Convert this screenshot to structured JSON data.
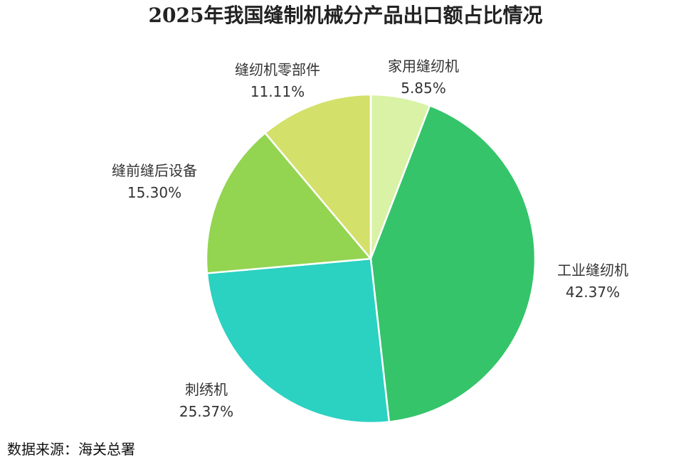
{
  "chart_data": {
    "type": "pie",
    "title": "2025年我国缝制机械分产品出口额占比情况",
    "categories": [
      "家用缝纫机",
      "工业缝纫机",
      "刺绣机",
      "缝前缝后设备",
      "缝纫机零部件"
    ],
    "values": [
      5.85,
      42.37,
      25.37,
      15.3,
      11.11
    ],
    "value_labels": [
      "5.85%",
      "42.37%",
      "25.37%",
      "15.30%",
      "11.11%"
    ],
    "colors": [
      "#d9f2a6",
      "#35c46a",
      "#2bd1c1",
      "#93d451",
      "#d3e06a"
    ],
    "unit": "%",
    "start_angle": "12 o'clock",
    "direction": "clockwise",
    "legend": "none"
  },
  "source": "数据来源：海关总署"
}
